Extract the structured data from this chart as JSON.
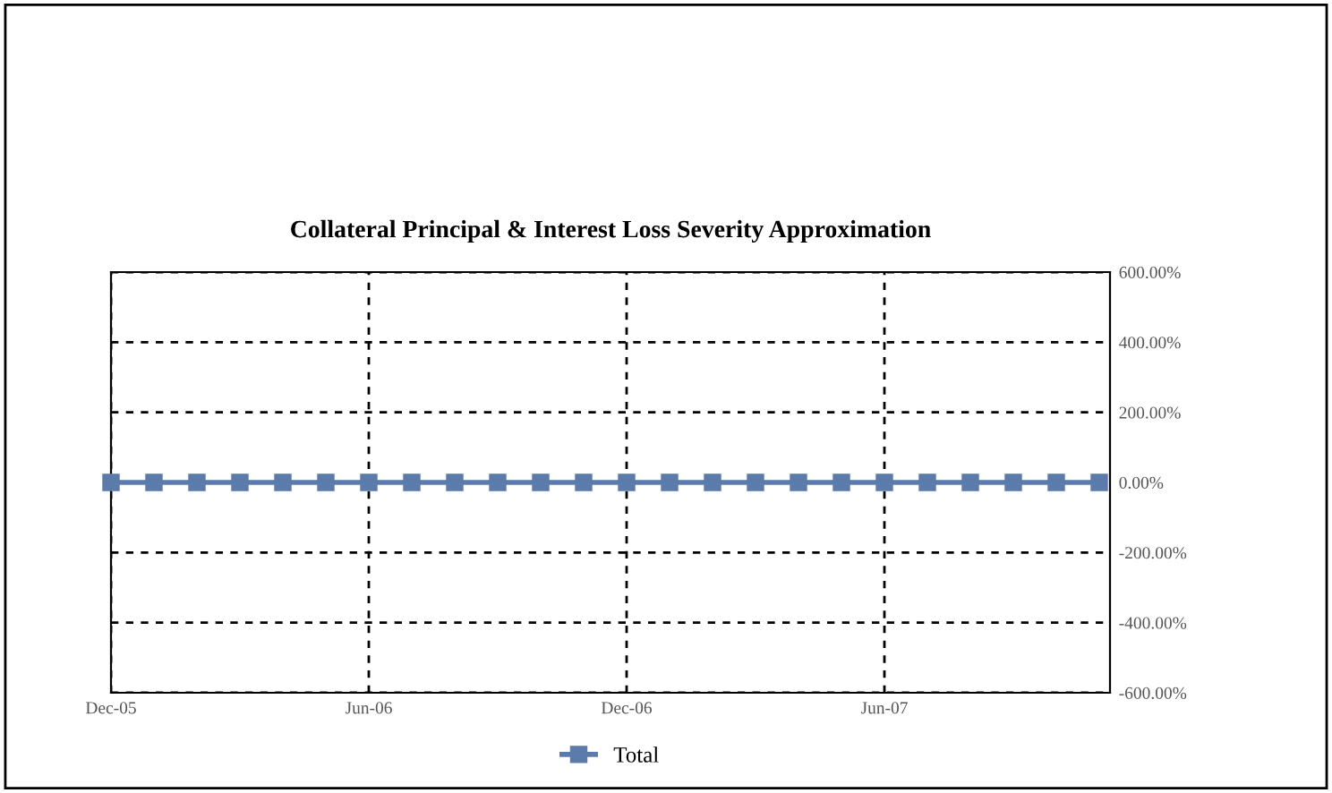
{
  "chart_data": {
    "type": "line",
    "title": "Collateral Principal & Interest Loss Severity Approximation",
    "categories": [
      "Dec-05",
      null,
      null,
      null,
      null,
      null,
      "Jun-06",
      null,
      null,
      null,
      null,
      null,
      "Dec-06",
      null,
      null,
      null,
      null,
      null,
      "Jun-07",
      null,
      null,
      null,
      null,
      null
    ],
    "series": [
      {
        "name": "Total",
        "color": "#5b7bab",
        "values": [
          0,
          0,
          0,
          0,
          0,
          0,
          0,
          0,
          0,
          0,
          0,
          0,
          0,
          0,
          0,
          0,
          0,
          0,
          0,
          0,
          0,
          0,
          0,
          0
        ]
      }
    ],
    "ylim": [
      -600,
      600
    ],
    "yticks": [
      {
        "value": -600,
        "label": "-600.00%"
      },
      {
        "value": -400,
        "label": "-400.00%"
      },
      {
        "value": -200,
        "label": "-200.00%"
      },
      {
        "value": 0,
        "label": "0.00%"
      },
      {
        "value": 200,
        "label": "200.00%"
      },
      {
        "value": 400,
        "label": "400.00%"
      },
      {
        "value": 600,
        "label": "600.00%"
      }
    ],
    "grid": true,
    "legend": "bottom",
    "marker": "square",
    "line_style": "solid"
  }
}
